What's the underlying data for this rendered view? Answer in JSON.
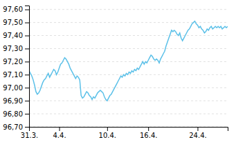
{
  "chart_data": {
    "type": "line",
    "categories": [
      "31.3.",
      null,
      null,
      null,
      null,
      null,
      null,
      null,
      null,
      null,
      null,
      null,
      null,
      null,
      null,
      null,
      null,
      null,
      null,
      null,
      null,
      null,
      "4.4.",
      null,
      null,
      null,
      null,
      null,
      null,
      null,
      null,
      null,
      null,
      null,
      null,
      null,
      null,
      null,
      null,
      null,
      null,
      null,
      null,
      null,
      null,
      null,
      null,
      null,
      null,
      null,
      null,
      null,
      null,
      null,
      null,
      null,
      null,
      "10.4.",
      null,
      null,
      null,
      null,
      null,
      null,
      null,
      null,
      null,
      null,
      null,
      null,
      null,
      null,
      null,
      null,
      null,
      null,
      null,
      null,
      null,
      null,
      null,
      null,
      null,
      null,
      null,
      null,
      null,
      "16.4.",
      null,
      null,
      null,
      null,
      null,
      null,
      null,
      null,
      null,
      null,
      null,
      null,
      null,
      null,
      null,
      null,
      null,
      null,
      null,
      null,
      null,
      null,
      null,
      null,
      null,
      null,
      null,
      null,
      null,
      null,
      null,
      null,
      null,
      null,
      null,
      "24.4.",
      null,
      null,
      null,
      null,
      null,
      null,
      null,
      null,
      null,
      null,
      null,
      null,
      null,
      null,
      null,
      null,
      null,
      null,
      null,
      null,
      null,
      null
    ],
    "values": [
      97.13,
      97.11,
      97.09,
      97.06,
      97.02,
      96.97,
      96.95,
      96.96,
      96.98,
      97.01,
      97.04,
      97.06,
      97.07,
      97.09,
      97.11,
      97.08,
      97.1,
      97.12,
      97.14,
      97.13,
      97.1,
      97.12,
      97.15,
      97.18,
      97.19,
      97.21,
      97.23,
      97.22,
      97.2,
      97.18,
      97.15,
      97.13,
      97.11,
      97.09,
      97.07,
      97.09,
      97.08,
      97.06,
      96.94,
      96.92,
      96.93,
      96.95,
      96.97,
      96.96,
      96.94,
      96.93,
      96.91,
      96.93,
      96.92,
      96.94,
      96.96,
      96.97,
      96.98,
      96.97,
      96.96,
      96.93,
      96.91,
      96.9,
      96.92,
      96.94,
      96.95,
      96.97,
      96.99,
      97.01,
      97.03,
      97.05,
      97.07,
      97.09,
      97.08,
      97.1,
      97.09,
      97.11,
      97.1,
      97.12,
      97.11,
      97.13,
      97.12,
      97.14,
      97.13,
      97.15,
      97.14,
      97.16,
      97.18,
      97.2,
      97.18,
      97.2,
      97.19,
      97.21,
      97.23,
      97.25,
      97.24,
      97.22,
      97.21,
      97.22,
      97.21,
      97.19,
      97.22,
      97.24,
      97.26,
      97.28,
      97.32,
      97.35,
      97.38,
      97.41,
      97.44,
      97.43,
      97.44,
      97.43,
      97.41,
      97.4,
      97.42,
      97.38,
      97.36,
      97.38,
      97.4,
      97.42,
      97.44,
      97.45,
      97.47,
      97.49,
      97.5,
      97.51,
      97.49,
      97.48,
      97.46,
      97.47,
      97.45,
      97.44,
      97.42,
      97.43,
      97.45,
      97.44,
      97.46,
      97.47,
      97.45,
      97.46,
      97.47,
      97.46,
      97.47,
      97.46,
      97.47,
      97.45,
      97.46,
      97.47,
      97.46,
      97.47
    ],
    "color": "#5bc0e8",
    "ylim": [
      96.7,
      97.63
    ],
    "yticks": [
      {
        "value": 96.7,
        "label": "96,70"
      },
      {
        "value": 96.8,
        "label": "96,80"
      },
      {
        "value": 96.9,
        "label": "96,90"
      },
      {
        "value": 97.0,
        "label": "97,00"
      },
      {
        "value": 97.1,
        "label": "97,10"
      },
      {
        "value": 97.2,
        "label": "97,20"
      },
      {
        "value": 97.3,
        "label": "97,30"
      },
      {
        "value": 97.4,
        "label": "97,40"
      },
      {
        "value": 97.5,
        "label": "97,50"
      },
      {
        "value": 97.6,
        "label": "97,60"
      }
    ],
    "grid": true
  }
}
